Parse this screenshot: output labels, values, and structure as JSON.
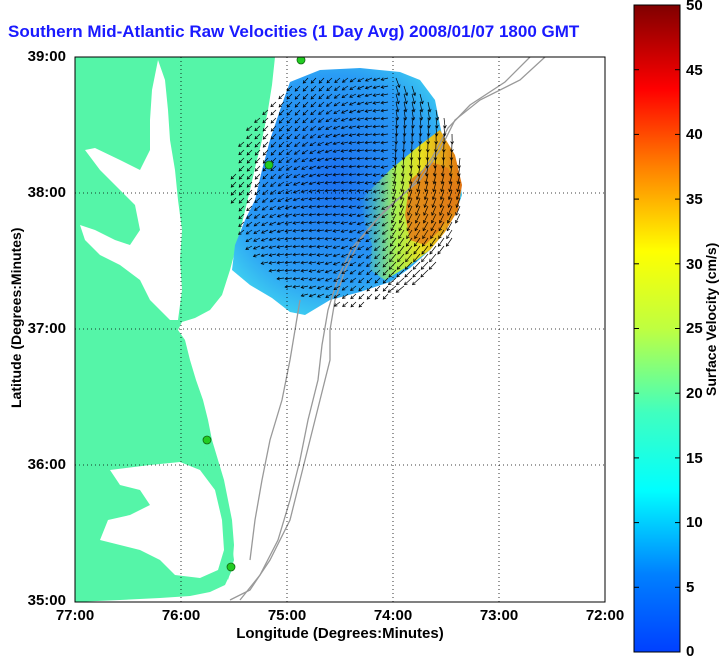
{
  "title": "Southern Mid-Atlantic Raw Velocities (1 Day Avg) 2008/01/07 1800 GMT",
  "xlabel": "Longitude (Degrees:Minutes)",
  "ylabel": "Latitude (Degrees:Minutes)",
  "x_ticks": [
    "77:00",
    "76:00",
    "75:00",
    "74:00",
    "73:00",
    "72:00"
  ],
  "y_ticks": [
    "39:00",
    "38:00",
    "37:00",
    "36:00",
    "35:00"
  ],
  "colorbar": {
    "label": "Surface Velocity (cm/s)",
    "ticks": [
      "50",
      "45",
      "40",
      "35",
      "30",
      "25",
      "20",
      "15",
      "10",
      "5",
      "0"
    ],
    "range": [
      0,
      50
    ],
    "colormap": "jet"
  },
  "colors": {
    "land": "#55f5a8",
    "title": "#1a1aff",
    "bathymetry": "#999999",
    "station": "#22cc22"
  },
  "grid": "dotted",
  "map": {
    "lon_range": [
      -77,
      -72
    ],
    "lat_range": [
      35,
      39
    ],
    "stations_label_visible": false
  }
}
